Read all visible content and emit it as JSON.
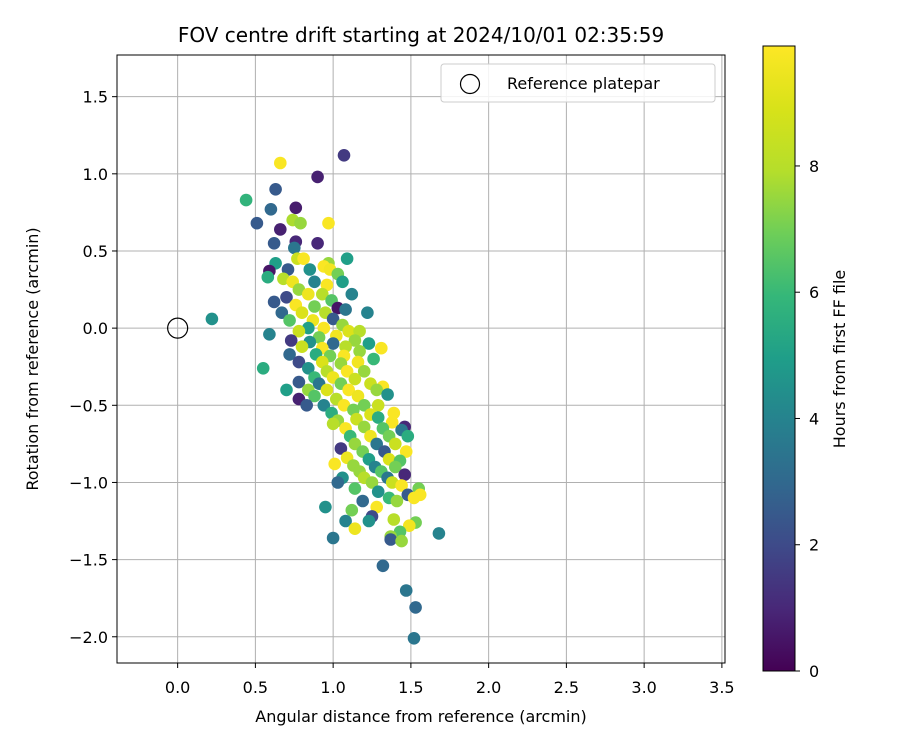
{
  "chart_data": {
    "type": "scatter",
    "title": "FOV centre drift starting at 2024/10/01 02:35:59",
    "xlabel": "Angular distance from reference (arcmin)",
    "ylabel": "Rotation from reference (arcmin)",
    "xlim": [
      -0.39,
      3.52
    ],
    "ylim": [
      -2.17,
      1.77
    ],
    "xticks": [
      "0.0",
      "0.5",
      "1.0",
      "1.5",
      "2.0",
      "2.5",
      "3.0",
      "3.5"
    ],
    "xtick_values": [
      0,
      0.5,
      1.0,
      1.5,
      2.0,
      2.5,
      3.0,
      3.5
    ],
    "yticks": [
      "1.5",
      "1.0",
      "0.5",
      "0.0",
      "−0.5",
      "−1.0",
      "−1.5",
      "−2.0"
    ],
    "ytick_values": [
      1.5,
      1.0,
      0.5,
      0.0,
      -0.5,
      -1.0,
      -1.5,
      -2.0
    ],
    "grid": true,
    "legend": {
      "position": "top-right",
      "entries": [
        {
          "label": "Reference platepar",
          "marker": "open-circle"
        }
      ]
    },
    "reference_point": {
      "x": 0.0,
      "y": 0.0
    },
    "colorbar": {
      "label": "Hours from first FF file",
      "range": [
        0,
        9.9
      ],
      "ticks": [
        "0",
        "2",
        "4",
        "6",
        "8"
      ],
      "tick_values": [
        0,
        2,
        4,
        6,
        8
      ],
      "colormap": "viridis"
    },
    "series": [
      {
        "points": [
          [
            1.07,
            1.12,
            1.5
          ],
          [
            0.66,
            1.07,
            9.8
          ],
          [
            0.9,
            0.98,
            0.8
          ],
          [
            0.63,
            0.9,
            2.5
          ],
          [
            0.44,
            0.83,
            5.8
          ],
          [
            0.6,
            0.77,
            3.0
          ],
          [
            0.76,
            0.78,
            0.7
          ],
          [
            0.51,
            0.68,
            2.5
          ],
          [
            0.74,
            0.7,
            7.8
          ],
          [
            0.79,
            0.68,
            7.5
          ],
          [
            0.97,
            0.68,
            9.8
          ],
          [
            0.66,
            0.64,
            0.8
          ],
          [
            0.76,
            0.56,
            1.0
          ],
          [
            0.62,
            0.55,
            2.5
          ],
          [
            0.9,
            0.55,
            1.0
          ],
          [
            0.75,
            0.52,
            3.5
          ],
          [
            1.09,
            0.45,
            5.0
          ],
          [
            0.77,
            0.45,
            8.5
          ],
          [
            0.97,
            0.42,
            7.5
          ],
          [
            0.63,
            0.42,
            5.0
          ],
          [
            0.81,
            0.45,
            9.8
          ],
          [
            0.94,
            0.4,
            9.8
          ],
          [
            0.59,
            0.37,
            0.5
          ],
          [
            0.71,
            0.38,
            2.5
          ],
          [
            0.85,
            0.38,
            4.5
          ],
          [
            0.98,
            0.38,
            9.6
          ],
          [
            1.03,
            0.35,
            7.0
          ],
          [
            0.68,
            0.32,
            8.0
          ],
          [
            0.58,
            0.33,
            5.5
          ],
          [
            0.74,
            0.3,
            9.5
          ],
          [
            0.88,
            0.3,
            4.0
          ],
          [
            0.96,
            0.28,
            9.8
          ],
          [
            1.06,
            0.3,
            5.0
          ],
          [
            0.78,
            0.25,
            7.5
          ],
          [
            0.7,
            0.2,
            2.0
          ],
          [
            0.84,
            0.22,
            9.5
          ],
          [
            0.93,
            0.22,
            8.0
          ],
          [
            0.99,
            0.18,
            6.5
          ],
          [
            1.12,
            0.22,
            4.0
          ],
          [
            0.62,
            0.17,
            2.5
          ],
          [
            0.76,
            0.15,
            9.8
          ],
          [
            0.88,
            0.14,
            7.0
          ],
          [
            1.03,
            0.13,
            0.5
          ],
          [
            1.08,
            0.12,
            3.5
          ],
          [
            0.67,
            0.1,
            3.0
          ],
          [
            0.8,
            0.1,
            9.0
          ],
          [
            0.95,
            0.1,
            8.0
          ],
          [
            1.22,
            0.1,
            4.0
          ],
          [
            0.72,
            0.05,
            6.5
          ],
          [
            0.87,
            0.05,
            9.5
          ],
          [
            1.0,
            0.06,
            2.5
          ],
          [
            0.22,
            0.06,
            4.5
          ],
          [
            0.84,
            0.0,
            5.0
          ],
          [
            0.94,
            0.0,
            9.8
          ],
          [
            1.06,
            0.02,
            7.5
          ],
          [
            0.59,
            -0.04,
            4.0
          ],
          [
            0.78,
            -0.02,
            8.5
          ],
          [
            1.1,
            -0.02,
            9.0
          ],
          [
            1.17,
            -0.02,
            8.0
          ],
          [
            0.91,
            -0.06,
            7.0
          ],
          [
            1.02,
            -0.05,
            9.6
          ],
          [
            0.73,
            -0.08,
            1.5
          ],
          [
            0.85,
            -0.09,
            4.5
          ],
          [
            1.0,
            -0.1,
            3.0
          ],
          [
            1.14,
            -0.08,
            7.5
          ],
          [
            1.23,
            -0.1,
            5.0
          ],
          [
            0.8,
            -0.12,
            8.5
          ],
          [
            0.93,
            -0.13,
            9.8
          ],
          [
            1.08,
            -0.12,
            8.0
          ],
          [
            1.17,
            -0.15,
            7.5
          ],
          [
            1.31,
            -0.13,
            9.8
          ],
          [
            0.72,
            -0.17,
            3.0
          ],
          [
            0.89,
            -0.17,
            5.5
          ],
          [
            0.98,
            -0.18,
            7.0
          ],
          [
            1.07,
            -0.18,
            9.8
          ],
          [
            1.26,
            -0.2,
            6.0
          ],
          [
            0.78,
            -0.22,
            2.0
          ],
          [
            0.93,
            -0.22,
            9.0
          ],
          [
            1.05,
            -0.23,
            7.5
          ],
          [
            1.16,
            -0.22,
            9.6
          ],
          [
            0.55,
            -0.26,
            5.5
          ],
          [
            0.84,
            -0.26,
            4.5
          ],
          [
            0.96,
            -0.28,
            8.0
          ],
          [
            1.09,
            -0.28,
            9.8
          ],
          [
            1.2,
            -0.28,
            7.5
          ],
          [
            0.88,
            -0.32,
            6.0
          ],
          [
            1.0,
            -0.32,
            9.5
          ],
          [
            1.14,
            -0.33,
            8.5
          ],
          [
            0.78,
            -0.35,
            2.5
          ],
          [
            0.91,
            -0.36,
            3.5
          ],
          [
            1.05,
            -0.36,
            7.0
          ],
          [
            1.24,
            -0.36,
            8.5
          ],
          [
            1.32,
            -0.38,
            9.8
          ],
          [
            0.7,
            -0.4,
            5.0
          ],
          [
            0.84,
            -0.4,
            7.5
          ],
          [
            0.96,
            -0.4,
            9.0
          ],
          [
            1.1,
            -0.4,
            9.8
          ],
          [
            1.28,
            -0.4,
            7.5
          ],
          [
            0.78,
            -0.46,
            0.8
          ],
          [
            0.88,
            -0.44,
            6.5
          ],
          [
            1.02,
            -0.46,
            8.0
          ],
          [
            1.16,
            -0.44,
            9.5
          ],
          [
            1.35,
            -0.43,
            4.5
          ],
          [
            0.83,
            -0.5,
            2.5
          ],
          [
            0.94,
            -0.5,
            4.0
          ],
          [
            1.07,
            -0.5,
            9.8
          ],
          [
            1.2,
            -0.5,
            7.0
          ],
          [
            1.29,
            -0.5,
            8.5
          ],
          [
            1.13,
            -0.53,
            7.0
          ],
          [
            0.99,
            -0.55,
            5.5
          ],
          [
            1.24,
            -0.56,
            9.0
          ],
          [
            1.39,
            -0.55,
            9.8
          ],
          [
            1.03,
            -0.6,
            7.5
          ],
          [
            1.15,
            -0.59,
            8.5
          ],
          [
            1.29,
            -0.58,
            5.5
          ],
          [
            1.38,
            -0.61,
            9.8
          ],
          [
            1.46,
            -0.64,
            1.0
          ],
          [
            1.0,
            -0.62,
            8.0
          ],
          [
            1.08,
            -0.65,
            9.8
          ],
          [
            1.2,
            -0.64,
            7.5
          ],
          [
            1.32,
            -0.65,
            6.5
          ],
          [
            1.44,
            -0.66,
            3.5
          ],
          [
            1.11,
            -0.7,
            6.0
          ],
          [
            1.24,
            -0.7,
            9.5
          ],
          [
            1.36,
            -0.7,
            7.0
          ],
          [
            1.48,
            -0.7,
            5.5
          ],
          [
            1.14,
            -0.75,
            7.5
          ],
          [
            1.28,
            -0.75,
            3.5
          ],
          [
            1.4,
            -0.75,
            8.5
          ],
          [
            1.05,
            -0.78,
            1.5
          ],
          [
            1.19,
            -0.8,
            7.0
          ],
          [
            1.33,
            -0.8,
            2.5
          ],
          [
            1.47,
            -0.8,
            9.8
          ],
          [
            1.09,
            -0.84,
            9.5
          ],
          [
            1.23,
            -0.85,
            5.0
          ],
          [
            1.36,
            -0.85,
            9.0
          ],
          [
            1.43,
            -0.86,
            6.5
          ],
          [
            1.01,
            -0.88,
            9.8
          ],
          [
            1.13,
            -0.89,
            7.5
          ],
          [
            1.27,
            -0.9,
            4.0
          ],
          [
            1.4,
            -0.9,
            7.0
          ],
          [
            1.17,
            -0.93,
            7.5
          ],
          [
            1.31,
            -0.93,
            6.5
          ],
          [
            1.46,
            -0.95,
            1.0
          ],
          [
            1.06,
            -0.97,
            4.5
          ],
          [
            1.2,
            -0.97,
            8.0
          ],
          [
            1.35,
            -0.97,
            3.5
          ],
          [
            1.03,
            -1.0,
            3.0
          ],
          [
            1.25,
            -1.0,
            7.5
          ],
          [
            1.38,
            -1.0,
            8.5
          ],
          [
            1.44,
            -1.02,
            9.8
          ],
          [
            1.55,
            -1.04,
            7.0
          ],
          [
            1.14,
            -1.04,
            6.5
          ],
          [
            1.29,
            -1.06,
            4.5
          ],
          [
            1.48,
            -1.08,
            2.5
          ],
          [
            1.56,
            -1.08,
            9.8
          ],
          [
            1.36,
            -1.1,
            6.0
          ],
          [
            1.41,
            -1.12,
            7.5
          ],
          [
            1.52,
            -1.1,
            9.8
          ],
          [
            1.19,
            -1.12,
            3.0
          ],
          [
            0.95,
            -1.16,
            4.5
          ],
          [
            1.28,
            -1.16,
            9.8
          ],
          [
            1.12,
            -1.18,
            7.0
          ],
          [
            1.25,
            -1.22,
            2.0
          ],
          [
            1.08,
            -1.25,
            4.0
          ],
          [
            1.23,
            -1.25,
            4.5
          ],
          [
            1.39,
            -1.24,
            8.0
          ],
          [
            1.53,
            -1.26,
            7.0
          ],
          [
            1.49,
            -1.28,
            9.6
          ],
          [
            1.14,
            -1.3,
            9.5
          ],
          [
            1.43,
            -1.32,
            6.5
          ],
          [
            1.68,
            -1.33,
            4.0
          ],
          [
            1.37,
            -1.35,
            7.5
          ],
          [
            1.0,
            -1.36,
            3.5
          ],
          [
            1.37,
            -1.37,
            2.5
          ],
          [
            1.44,
            -1.38,
            7.5
          ],
          [
            1.32,
            -1.54,
            3.0
          ],
          [
            1.47,
            -1.7,
            3.5
          ],
          [
            1.53,
            -1.81,
            3.0
          ],
          [
            1.52,
            -2.01,
            3.5
          ]
        ]
      }
    ]
  }
}
